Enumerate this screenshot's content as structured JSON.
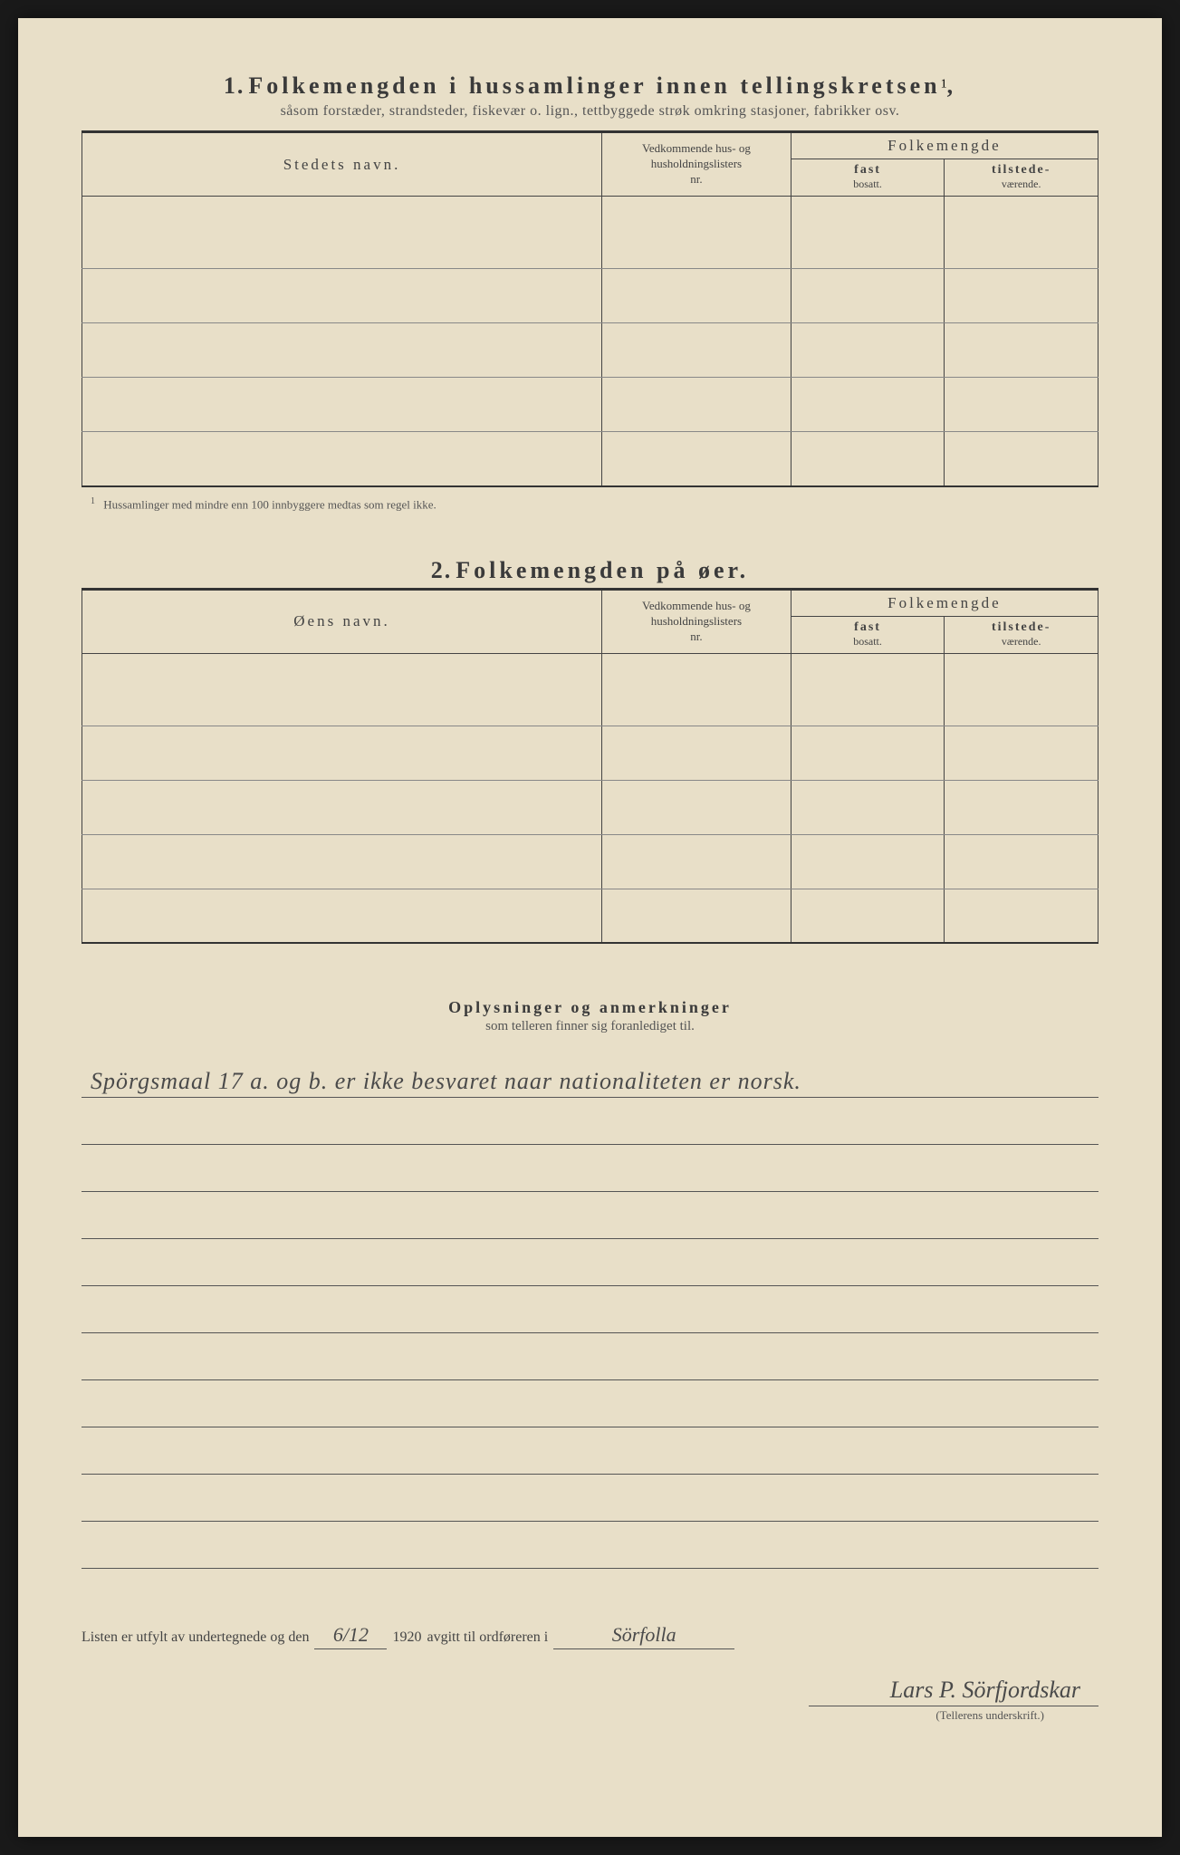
{
  "colors": {
    "paper_bg": "#e8dfc8",
    "text_primary": "#3a3a3a",
    "text_secondary": "#555",
    "rule": "#444",
    "handwriting": "#4a4a4a",
    "page_bg": "#1a1a1a"
  },
  "typography": {
    "title_fontsize": 26,
    "title_letterspacing": 4,
    "subtitle_fontsize": 16,
    "table_header_fontsize": 17,
    "body_fontsize": 14,
    "footnote_fontsize": 13,
    "handwriting_fontsize": 26
  },
  "section1": {
    "number": "1.",
    "title": "Folkemengden i hussamlinger innen tellingskretsen",
    "superscript": "1",
    "subtitle": "såsom forstæder, strandsteder, fiskevær o. lign., tettbyggede strøk omkring stasjoner, fabrikker osv.",
    "columns": {
      "name": "Stedets navn.",
      "ref_line1": "Vedkommende hus- og",
      "ref_line2": "husholdningslisters",
      "ref_line3": "nr.",
      "group": "Folkemengde",
      "fast_bold": "fast",
      "fast_small": "bosatt.",
      "til_bold": "tilstede-",
      "til_small": "værende."
    },
    "row_count": 5,
    "footnote_mark": "1",
    "footnote_text": "Hussamlinger med mindre enn 100 innbyggere medtas som regel ikke."
  },
  "section2": {
    "number": "2.",
    "title": "Folkemengden på øer.",
    "columns": {
      "name": "Øens navn.",
      "ref_line1": "Vedkommende hus- og",
      "ref_line2": "husholdningslisters",
      "ref_line3": "nr.",
      "group": "Folkemengde",
      "fast_bold": "fast",
      "fast_small": "bosatt.",
      "til_bold": "tilstede-",
      "til_small": "værende."
    },
    "row_count": 5
  },
  "remarks": {
    "title": "Oplysninger og anmerkninger",
    "subtitle": "som telleren finner sig foranlediget til.",
    "handwritten_line1": "Spörgsmaal 17 a. og b. er ikke besvaret naar nationaliteten er norsk.",
    "blank_line_count": 11
  },
  "signature": {
    "prefix": "Listen er utfylt av undertegnede og den",
    "date": "6/12",
    "year": "1920",
    "middle": "avgitt til ordføreren i",
    "place": "Sörfolla",
    "name": "Lars P. Sörfjordskar",
    "label": "(Tellerens underskrift.)"
  }
}
